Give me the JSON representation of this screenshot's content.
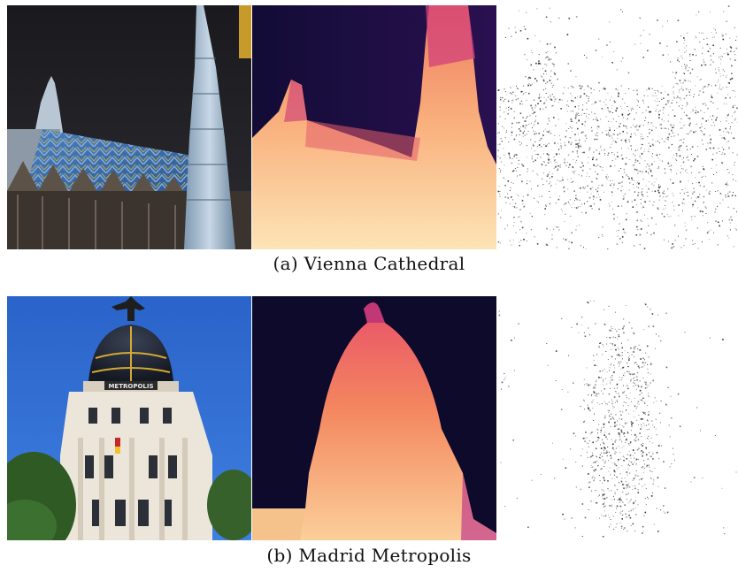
{
  "rows": [
    {
      "id": "a",
      "caption": "(a) Vienna Cathedral",
      "panels": [
        {
          "kind": "photo",
          "subject": "cathedral-photo"
        },
        {
          "kind": "depth-map",
          "colormap": "magma"
        },
        {
          "kind": "sparse-points"
        }
      ]
    },
    {
      "id": "b",
      "caption": "(b) Madrid Metropolis",
      "panels": [
        {
          "kind": "photo",
          "subject": "dome-building-photo"
        },
        {
          "kind": "depth-map",
          "colormap": "magma"
        },
        {
          "kind": "sparse-points"
        }
      ]
    }
  ],
  "colors": {
    "night_sky": "#1f1f24",
    "roof_blue": "#3a6fae",
    "roof_gold": "#b8a23a",
    "spire": "#9fb6c8",
    "sky_blue": "#2f6fd0",
    "facade": "#e8e2d6",
    "dome": "#1e2430",
    "depth_far": "#0d0a2a",
    "depth_mid": "#c2327a",
    "depth_near": "#fbe2b0",
    "points": "#222222"
  }
}
